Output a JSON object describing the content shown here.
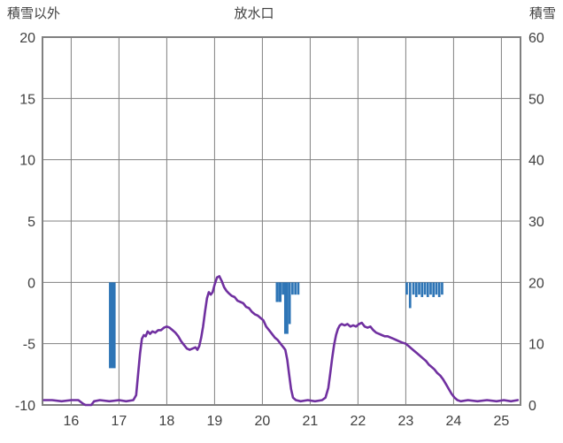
{
  "header": {
    "left_axis_title": "積雪以外",
    "title": "放水口",
    "right_axis_title": "積雪"
  },
  "chart_data": {
    "type": "mixed",
    "title": "放水口",
    "grid": true,
    "grid_color": "#808080",
    "text_color": "#404040",
    "background": "#ffffff",
    "x_axis": {
      "min": 15.4,
      "max": 25.4,
      "ticks": [
        16,
        17,
        18,
        19,
        20,
        21,
        22,
        23,
        24,
        25
      ]
    },
    "left_axis": {
      "label": "積雪以外",
      "min": -10,
      "max": 20,
      "ticks": [
        20,
        15,
        10,
        5,
        0,
        -5,
        -10
      ]
    },
    "right_axis": {
      "label": "積雪",
      "min": 0,
      "max": 60,
      "ticks": [
        60,
        50,
        40,
        30,
        20,
        10,
        0
      ]
    },
    "bar_series": {
      "name": "snowfall-bars",
      "color": "#2E75B6",
      "baseline": 0,
      "bars": [
        [
          16.86,
          -7.0,
          0.14
        ],
        [
          20.31,
          -1.6,
          0.06
        ],
        [
          20.37,
          -1.6,
          0.06
        ],
        [
          20.43,
          -1.0,
          0.05
        ],
        [
          20.5,
          -4.2,
          0.09
        ],
        [
          20.57,
          -3.4,
          0.05
        ],
        [
          20.63,
          -1.0,
          0.05
        ],
        [
          20.69,
          -1.0,
          0.05
        ],
        [
          20.75,
          -1.0,
          0.05
        ],
        [
          23.02,
          -1.0,
          0.05
        ],
        [
          23.09,
          -2.1,
          0.05
        ],
        [
          23.16,
          -1.0,
          0.05
        ],
        [
          23.22,
          -1.2,
          0.05
        ],
        [
          23.28,
          -1.0,
          0.05
        ],
        [
          23.34,
          -1.2,
          0.05
        ],
        [
          23.4,
          -1.0,
          0.05
        ],
        [
          23.46,
          -1.2,
          0.05
        ],
        [
          23.52,
          -1.0,
          0.05
        ],
        [
          23.58,
          -1.2,
          0.05
        ],
        [
          23.64,
          -1.0,
          0.05
        ],
        [
          23.7,
          -1.2,
          0.05
        ],
        [
          23.76,
          -1.0,
          0.05
        ]
      ]
    },
    "line_series": {
      "name": "discharge-line",
      "color": "#7030A0",
      "points": [
        [
          15.43,
          -9.6
        ],
        [
          15.6,
          -9.6
        ],
        [
          15.8,
          -9.7
        ],
        [
          16.0,
          -9.6
        ],
        [
          16.15,
          -9.6
        ],
        [
          16.25,
          -9.9
        ],
        [
          16.3,
          -10.0
        ],
        [
          16.42,
          -10.0
        ],
        [
          16.48,
          -9.7
        ],
        [
          16.6,
          -9.6
        ],
        [
          16.8,
          -9.7
        ],
        [
          17.0,
          -9.6
        ],
        [
          17.15,
          -9.7
        ],
        [
          17.3,
          -9.6
        ],
        [
          17.36,
          -9.2
        ],
        [
          17.4,
          -7.5
        ],
        [
          17.44,
          -5.8
        ],
        [
          17.48,
          -4.6
        ],
        [
          17.52,
          -4.3
        ],
        [
          17.56,
          -4.4
        ],
        [
          17.6,
          -4.0
        ],
        [
          17.65,
          -4.2
        ],
        [
          17.7,
          -4.0
        ],
        [
          17.76,
          -4.1
        ],
        [
          17.82,
          -3.9
        ],
        [
          17.88,
          -3.9
        ],
        [
          17.94,
          -3.7
        ],
        [
          18.0,
          -3.6
        ],
        [
          18.06,
          -3.7
        ],
        [
          18.12,
          -3.9
        ],
        [
          18.18,
          -4.1
        ],
        [
          18.24,
          -4.4
        ],
        [
          18.3,
          -4.8
        ],
        [
          18.36,
          -5.1
        ],
        [
          18.42,
          -5.4
        ],
        [
          18.48,
          -5.5
        ],
        [
          18.54,
          -5.4
        ],
        [
          18.6,
          -5.3
        ],
        [
          18.64,
          -5.5
        ],
        [
          18.68,
          -5.2
        ],
        [
          18.72,
          -4.5
        ],
        [
          18.76,
          -3.6
        ],
        [
          18.8,
          -2.4
        ],
        [
          18.84,
          -1.3
        ],
        [
          18.88,
          -0.8
        ],
        [
          18.92,
          -1.0
        ],
        [
          18.96,
          -0.8
        ],
        [
          19.0,
          -0.2
        ],
        [
          19.05,
          0.4
        ],
        [
          19.1,
          0.5
        ],
        [
          19.15,
          0.1
        ],
        [
          19.2,
          -0.4
        ],
        [
          19.25,
          -0.7
        ],
        [
          19.3,
          -0.9
        ],
        [
          19.36,
          -1.1
        ],
        [
          19.42,
          -1.2
        ],
        [
          19.48,
          -1.5
        ],
        [
          19.54,
          -1.6
        ],
        [
          19.6,
          -1.7
        ],
        [
          19.66,
          -2.0
        ],
        [
          19.72,
          -2.1
        ],
        [
          19.78,
          -2.4
        ],
        [
          19.84,
          -2.6
        ],
        [
          19.9,
          -2.7
        ],
        [
          19.96,
          -2.9
        ],
        [
          20.02,
          -3.1
        ],
        [
          20.08,
          -3.6
        ],
        [
          20.14,
          -3.9
        ],
        [
          20.2,
          -4.2
        ],
        [
          20.26,
          -4.5
        ],
        [
          20.32,
          -4.7
        ],
        [
          20.38,
          -5.0
        ],
        [
          20.44,
          -5.3
        ],
        [
          20.48,
          -5.5
        ],
        [
          20.52,
          -6.3
        ],
        [
          20.56,
          -7.5
        ],
        [
          20.6,
          -8.7
        ],
        [
          20.64,
          -9.4
        ],
        [
          20.7,
          -9.6
        ],
        [
          20.8,
          -9.7
        ],
        [
          20.95,
          -9.6
        ],
        [
          21.1,
          -9.7
        ],
        [
          21.25,
          -9.6
        ],
        [
          21.32,
          -9.4
        ],
        [
          21.38,
          -8.6
        ],
        [
          21.42,
          -7.4
        ],
        [
          21.46,
          -6.2
        ],
        [
          21.5,
          -5.1
        ],
        [
          21.54,
          -4.3
        ],
        [
          21.58,
          -3.8
        ],
        [
          21.62,
          -3.5
        ],
        [
          21.66,
          -3.4
        ],
        [
          21.72,
          -3.5
        ],
        [
          21.78,
          -3.4
        ],
        [
          21.84,
          -3.6
        ],
        [
          21.9,
          -3.5
        ],
        [
          21.96,
          -3.6
        ],
        [
          22.02,
          -3.4
        ],
        [
          22.08,
          -3.3
        ],
        [
          22.14,
          -3.6
        ],
        [
          22.2,
          -3.7
        ],
        [
          22.26,
          -3.6
        ],
        [
          22.32,
          -3.9
        ],
        [
          22.38,
          -4.1
        ],
        [
          22.44,
          -4.2
        ],
        [
          22.5,
          -4.3
        ],
        [
          22.56,
          -4.4
        ],
        [
          22.62,
          -4.4
        ],
        [
          22.68,
          -4.5
        ],
        [
          22.74,
          -4.6
        ],
        [
          22.8,
          -4.7
        ],
        [
          22.86,
          -4.8
        ],
        [
          22.92,
          -4.9
        ],
        [
          23.0,
          -5.0
        ],
        [
          23.06,
          -5.2
        ],
        [
          23.12,
          -5.4
        ],
        [
          23.18,
          -5.6
        ],
        [
          23.24,
          -5.8
        ],
        [
          23.3,
          -6.0
        ],
        [
          23.36,
          -6.2
        ],
        [
          23.42,
          -6.4
        ],
        [
          23.48,
          -6.7
        ],
        [
          23.54,
          -6.9
        ],
        [
          23.6,
          -7.1
        ],
        [
          23.66,
          -7.4
        ],
        [
          23.72,
          -7.6
        ],
        [
          23.78,
          -7.9
        ],
        [
          23.84,
          -8.3
        ],
        [
          23.9,
          -8.7
        ],
        [
          23.96,
          -9.1
        ],
        [
          24.02,
          -9.4
        ],
        [
          24.08,
          -9.6
        ],
        [
          24.15,
          -9.7
        ],
        [
          24.3,
          -9.6
        ],
        [
          24.5,
          -9.7
        ],
        [
          24.7,
          -9.6
        ],
        [
          24.9,
          -9.7
        ],
        [
          25.05,
          -9.6
        ],
        [
          25.2,
          -9.7
        ],
        [
          25.34,
          -9.6
        ]
      ]
    }
  }
}
